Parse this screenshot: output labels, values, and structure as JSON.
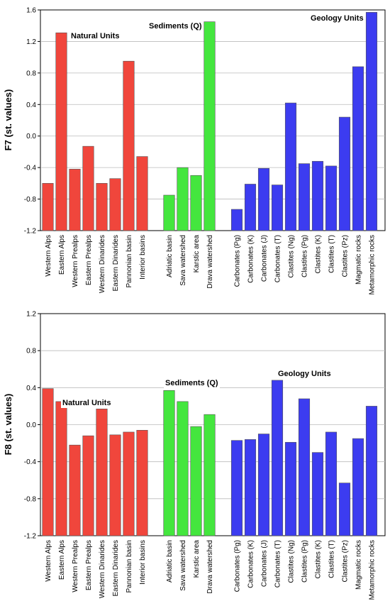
{
  "chart_data": [
    {
      "type": "bar",
      "ylabel": "F7 (st. values)",
      "ylim": [
        -1.2,
        1.6
      ],
      "yticks": [
        "-1.2",
        "-0.8",
        "-0.4",
        "0.0",
        "0.4",
        "0.8",
        "1.2",
        "1.6"
      ],
      "grid": "horizontal",
      "groups": [
        {
          "name": "Natural Units",
          "color": "#f0463c",
          "categories": [
            "Western Alps",
            "Eastern Alps",
            "Western Prealps",
            "Eastern Prealps",
            "Western Dinarides",
            "Eastern Dinarides",
            "Pannonian basin",
            "Interior basins"
          ],
          "values": [
            -0.6,
            1.31,
            -0.42,
            -0.13,
            -0.6,
            -0.54,
            0.95,
            -0.26
          ]
        },
        {
          "name": "Sediments (Q)",
          "color": "#44e63e",
          "categories": [
            "Adriatic basin",
            "Sava watershed",
            "Karstic area",
            "Drava watershed"
          ],
          "values": [
            -0.75,
            -0.4,
            -0.5,
            1.45
          ]
        },
        {
          "name": "Geology Units",
          "color": "#3c3cf0",
          "categories": [
            "Carbonates (Pg)",
            "Carbonates (K)",
            "Carbonates (J)",
            "Carbonates (T)",
            "Clastites (Ng)",
            "Clastites (Pg)",
            "Clastites (K)",
            "Clastites (T)",
            "Clastites (Pz)",
            "Magmatic rocks",
            "Metamorphic rocks"
          ],
          "values": [
            -0.93,
            -0.61,
            -0.41,
            -0.62,
            0.42,
            -0.35,
            -0.32,
            -0.38,
            0.24,
            0.88,
            1.57
          ]
        }
      ]
    },
    {
      "type": "bar",
      "ylabel": "F8 (st. values)",
      "ylim": [
        -1.2,
        1.2
      ],
      "yticks": [
        "-1.2",
        "-0.8",
        "-0.4",
        "0.0",
        "0.4",
        "0.8",
        "1.2"
      ],
      "grid": "horizontal",
      "groups": [
        {
          "name": "Natural Units",
          "color": "#f0463c",
          "categories": [
            "Western Alps",
            "Eastern Alps",
            "Western Prealps",
            "Eastern Prealps",
            "Western Dinarides",
            "Eastern Dinarides",
            "Pannonian basin",
            "Interior basins"
          ],
          "values": [
            0.39,
            0.25,
            -0.22,
            -0.12,
            0.17,
            -0.11,
            -0.08,
            -0.06
          ]
        },
        {
          "name": "Sediments (Q)",
          "color": "#44e63e",
          "categories": [
            "Adriatic basin",
            "Sava watershed",
            "Karstic area",
            "Drava watershed"
          ],
          "values": [
            0.37,
            0.25,
            -0.02,
            0.11
          ]
        },
        {
          "name": "Geology Units",
          "color": "#3c3cf0",
          "categories": [
            "Carbonates (Pg)",
            "Carbonates (K)",
            "Carbonates (J)",
            "Carbonates (T)",
            "Clastites (Ng)",
            "Clastites (Pg)",
            "Clastites (K)",
            "Clastites (T)",
            "Clastites (Pz)",
            "Magmatic rocks",
            "Metamorphic rocks"
          ],
          "values": [
            -0.17,
            -0.16,
            -0.1,
            0.48,
            -0.19,
            0.28,
            -0.3,
            -0.08,
            -0.63,
            -0.15,
            0.2
          ]
        }
      ]
    }
  ]
}
